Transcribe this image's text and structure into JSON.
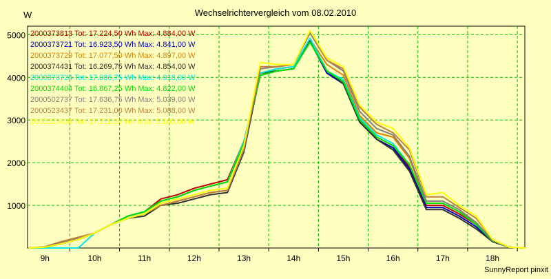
{
  "chart_data": {
    "type": "line",
    "title": "Wechselrichtervergleich vom 08.02.2010",
    "ylabel": "W",
    "footer": "SunnyReport pinxit",
    "ylim": [
      0,
      5200
    ],
    "xlim": [
      8.65,
      18.65
    ],
    "y_ticks": [
      1000,
      2000,
      3000,
      4000,
      5000
    ],
    "x_ticks": [
      "9h",
      "10h",
      "11h",
      "12h",
      "13h",
      "14h",
      "15h",
      "16h",
      "17h",
      "18h"
    ],
    "grid": true,
    "legend_placement": "top-left",
    "x": [
      8.67,
      9.0,
      9.33,
      9.67,
      10.0,
      10.33,
      10.67,
      11.0,
      11.33,
      11.67,
      12.0,
      12.33,
      12.67,
      13.0,
      13.33,
      13.67,
      14.0,
      14.33,
      14.67,
      15.0,
      15.33,
      15.67,
      16.0,
      16.33,
      16.67,
      17.0,
      17.33,
      17.67,
      18.0,
      18.33,
      18.67
    ],
    "series": [
      {
        "name": "2000373813 Tot: 17.224,50 Wh Max: 4.884,00 W",
        "color": "#c00000",
        "values": [
          0,
          20,
          100,
          200,
          350,
          550,
          750,
          850,
          1150,
          1250,
          1400,
          1500,
          1600,
          2500,
          4100,
          4200,
          4250,
          4884,
          4150,
          3900,
          3000,
          2600,
          2400,
          1900,
          1000,
          1000,
          800,
          550,
          170,
          20,
          0
        ]
      },
      {
        "name": "2000373721 Tot: 16.923,50 Wh Max: 4.841,00 W",
        "color": "#0000c0",
        "values": [
          0,
          20,
          100,
          200,
          350,
          550,
          750,
          850,
          1100,
          1200,
          1350,
          1450,
          1550,
          2450,
          4050,
          4150,
          4200,
          4841,
          4100,
          3850,
          2950,
          2550,
          2350,
          1850,
          950,
          950,
          750,
          500,
          150,
          20,
          0
        ]
      },
      {
        "name": "2000373729 Tot: 17.077,50 Wh Max: 4.897,00 W",
        "color": "#e08000",
        "values": [
          0,
          20,
          150,
          250,
          350,
          550,
          700,
          800,
          1000,
          1100,
          1200,
          1300,
          1350,
          2350,
          4050,
          4200,
          4250,
          4897,
          4300,
          4050,
          3100,
          2700,
          2600,
          2100,
          1050,
          1050,
          850,
          600,
          180,
          20,
          0
        ]
      },
      {
        "name": "2000374431 Tot: 16.269,75 Wh Max: 4.854,00 W",
        "color": "#303030",
        "values": [
          0,
          20,
          100,
          200,
          350,
          550,
          700,
          750,
          1000,
          1050,
          1150,
          1250,
          1300,
          2250,
          4100,
          4150,
          4200,
          4854,
          4150,
          3850,
          2950,
          2550,
          2300,
          1800,
          900,
          900,
          700,
          450,
          150,
          20,
          0
        ]
      },
      {
        "name": "2000373724 Tot: 17.086,75 Wh Max: 4.918,00 W",
        "color": "#00e8e8",
        "values": [
          0,
          0,
          0,
          0,
          350,
          550,
          750,
          850,
          1100,
          1200,
          1350,
          1450,
          1550,
          2500,
          4100,
          4200,
          4250,
          4918,
          4150,
          3950,
          3050,
          2650,
          2450,
          1950,
          1050,
          1050,
          850,
          550,
          170,
          20,
          0
        ]
      },
      {
        "name": "2000374404 Tot: 16.867,25 Wh Max: 4.822,00 W",
        "color": "#00e000",
        "values": [
          0,
          20,
          100,
          200,
          350,
          550,
          750,
          850,
          1100,
          1200,
          1350,
          1450,
          1550,
          2450,
          4050,
          4150,
          4200,
          4822,
          4150,
          3900,
          3000,
          2600,
          2400,
          1950,
          1050,
          1050,
          850,
          550,
          170,
          20,
          0
        ]
      },
      {
        "name": "2000502737 Tot: 17.636,75 Wh Max: 5.039,00 W",
        "color": "#808080",
        "values": [
          0,
          20,
          120,
          220,
          350,
          550,
          700,
          800,
          1000,
          1100,
          1200,
          1300,
          1350,
          2300,
          4200,
          4250,
          4300,
          5039,
          4400,
          4150,
          3200,
          2800,
          2650,
          2150,
          1100,
          1100,
          900,
          600,
          180,
          20,
          0
        ]
      },
      {
        "name": "2000523437 Tot: 17.231,00 Wh Max: 5.088,00 W",
        "color": "#c08040",
        "values": [
          0,
          30,
          150,
          250,
          350,
          550,
          700,
          800,
          1000,
          1100,
          1200,
          1300,
          1350,
          2350,
          4250,
          4250,
          4300,
          5088,
          4400,
          4200,
          3300,
          2900,
          2700,
          2300,
          1200,
          1200,
          950,
          700,
          200,
          20,
          0
        ]
      },
      {
        "name": "2000523438 Tot: 17.711,00 Wh Max: 5.100,00 W",
        "color": "#ffff00",
        "values": [
          0,
          20,
          100,
          200,
          350,
          550,
          700,
          800,
          1050,
          1150,
          1250,
          1350,
          1400,
          2400,
          4350,
          4300,
          4300,
          5100,
          4450,
          4250,
          3350,
          2950,
          2800,
          2350,
          1250,
          1300,
          1000,
          750,
          200,
          20,
          0
        ]
      }
    ]
  }
}
